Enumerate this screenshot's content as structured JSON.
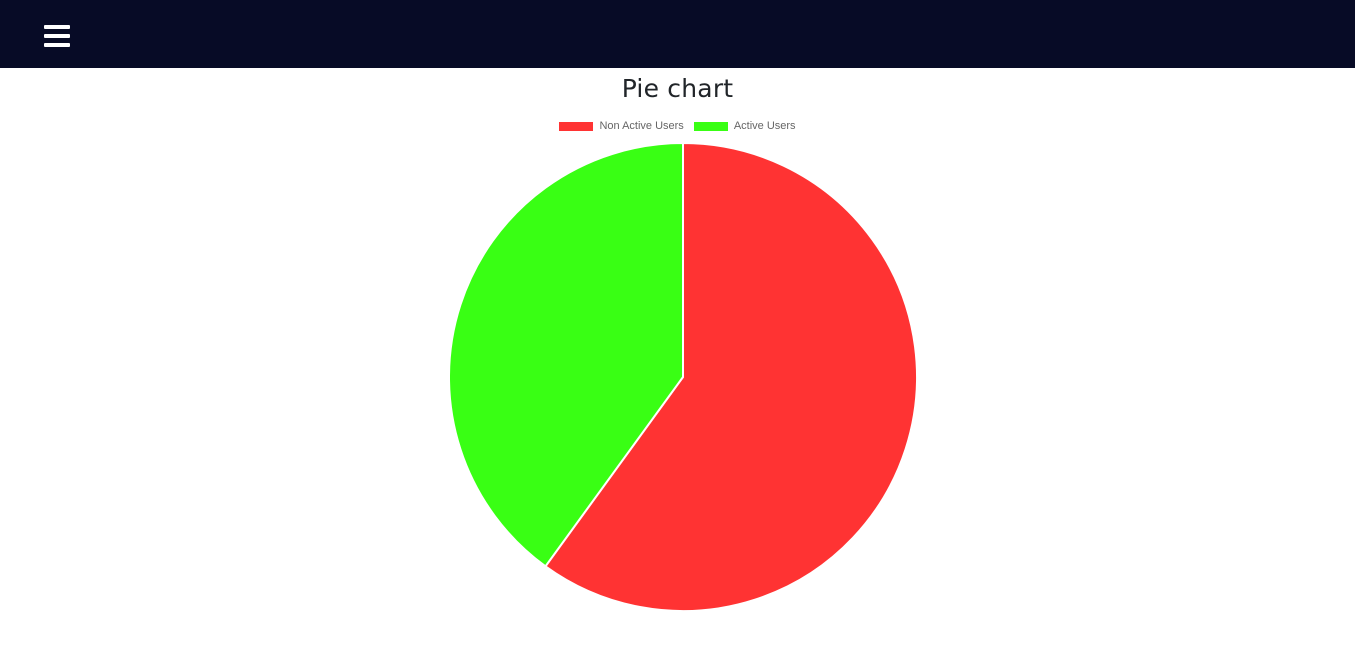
{
  "header": {
    "menu_icon": "hamburger-menu-icon",
    "background_color": "#070b26"
  },
  "chart_data": {
    "type": "pie",
    "title": "Pie chart",
    "legend_position": "top",
    "series": [
      {
        "name": "Non Active Users",
        "value": 60,
        "color": "#ff3333"
      },
      {
        "name": "Active Users",
        "value": 40,
        "color": "#39ff14"
      }
    ]
  }
}
